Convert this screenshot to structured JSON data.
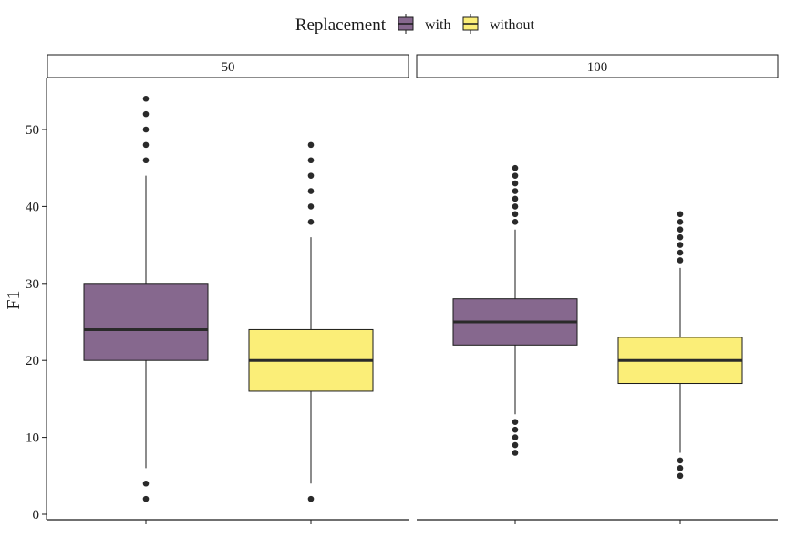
{
  "chart_data": {
    "type": "boxplot",
    "legend": {
      "title": "Replacement",
      "position": "top",
      "entries": [
        {
          "label": "with",
          "color": "#86688e"
        },
        {
          "label": "without",
          "color": "#fbee78"
        }
      ]
    },
    "ylabel": "F1",
    "xlabel": "",
    "ylim": [
      0,
      56
    ],
    "yticks": [
      0,
      10,
      20,
      30,
      40,
      50
    ],
    "grid": false,
    "panels": [
      {
        "label": "50",
        "boxes": [
          {
            "group": "with",
            "q1": 20,
            "median": 24,
            "q3": 30,
            "whisker_low": 6,
            "whisker_high": 44,
            "outliers": [
              2,
              4,
              46,
              48,
              50,
              52,
              54
            ]
          },
          {
            "group": "without",
            "q1": 16,
            "median": 20,
            "q3": 24,
            "whisker_low": 4,
            "whisker_high": 36,
            "outliers": [
              2,
              38,
              40,
              42,
              44,
              46,
              48
            ]
          }
        ]
      },
      {
        "label": "100",
        "boxes": [
          {
            "group": "with",
            "q1": 22,
            "median": 25,
            "q3": 28,
            "whisker_low": 13,
            "whisker_high": 37,
            "outliers": [
              8,
              9,
              10,
              11,
              12,
              38,
              39,
              40,
              41,
              42,
              43,
              44,
              45
            ]
          },
          {
            "group": "without",
            "q1": 17,
            "median": 20,
            "q3": 23,
            "whisker_low": 8,
            "whisker_high": 32,
            "outliers": [
              5,
              6,
              7,
              33,
              34,
              35,
              36,
              37,
              38,
              39
            ]
          }
        ]
      }
    ]
  }
}
